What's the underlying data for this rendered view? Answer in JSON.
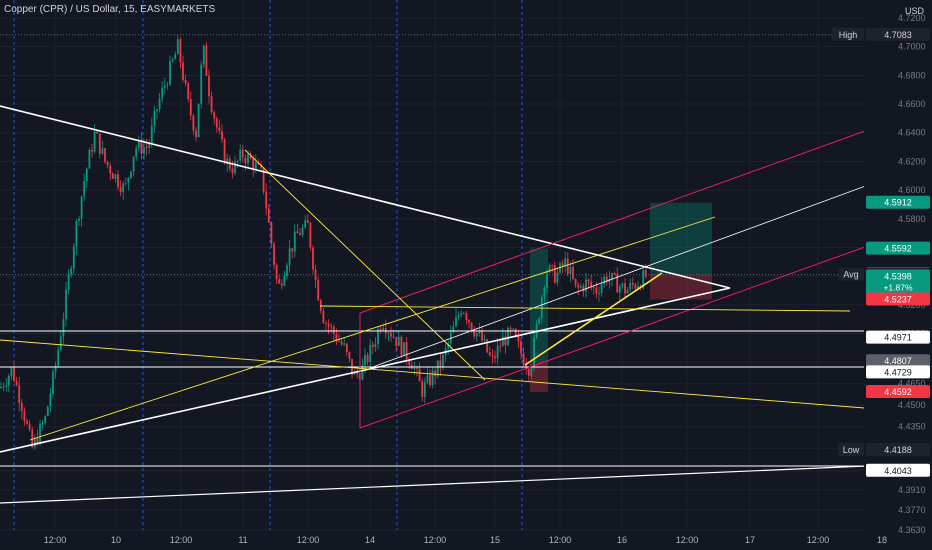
{
  "header": {
    "title": "Copper (CPR) / US Dollar, 15, EASYMARKETS",
    "unit": "USD"
  },
  "chart_data": {
    "type": "candlestick",
    "title": "Copper (CPR) / US Dollar, 15, EASYMARKETS",
    "ylim": [
      4.363,
      4.72
    ],
    "y_ticks": [
      "4.7200",
      "4.7000",
      "4.6800",
      "4.6600",
      "4.6400",
      "4.6200",
      "4.6000",
      "4.5800",
      "4.5600",
      "4.5400",
      "4.5200",
      "4.5000",
      "4.4800",
      "4.4650",
      "4.4500",
      "4.4350",
      "4.4200",
      "4.4043",
      "4.3910",
      "4.3770",
      "4.3630"
    ],
    "x_ticks": [
      "12:00",
      "10",
      "12:00",
      "11",
      "12:00",
      "14",
      "12:00",
      "15",
      "12:00",
      "16",
      "12:00",
      "17",
      "12:00",
      "18"
    ],
    "price_labels": [
      {
        "text": "High",
        "value": "4.7083",
        "kind": "tag"
      },
      {
        "value": "4.5912",
        "color": "#089981"
      },
      {
        "value": "4.5592",
        "color": "#089981"
      },
      {
        "value": "4.5415",
        "color": "#5d606b"
      },
      {
        "text": "Avg",
        "value": "4.5411",
        "kind": "tag"
      },
      {
        "value": "4.5398",
        "color": "#089981",
        "sub": [
          "+1.87%",
          "14:36"
        ]
      },
      {
        "value": "4.5237",
        "color": "#f23645"
      },
      {
        "value": "4.4971",
        "color": "#ffffff"
      },
      {
        "value": "4.4807",
        "color": "#5d606b"
      },
      {
        "value": "4.4729",
        "color": "#ffffff"
      },
      {
        "value": "4.4592",
        "color": "#f23645"
      },
      {
        "text": "Low",
        "value": "4.4188",
        "kind": "tag"
      },
      {
        "value": "4.4043",
        "color": "#ffffff"
      }
    ],
    "colors": {
      "up": "#089981",
      "down": "#f23645",
      "grid": "#1e222d",
      "session": "#2962ff",
      "channel": "#e91e63",
      "trend": "#ffeb3b"
    }
  }
}
